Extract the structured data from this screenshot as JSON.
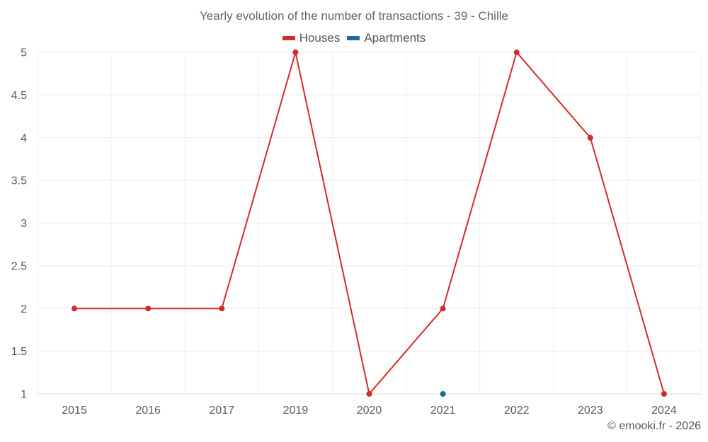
{
  "chart_data": {
    "type": "line",
    "title": "Yearly evolution of the number of transactions - 39 - Chille",
    "categories": [
      "2015",
      "2016",
      "2017",
      "2019",
      "2020",
      "2021",
      "2022",
      "2023",
      "2024"
    ],
    "series": [
      {
        "name": "Houses",
        "color": "#d32a2a",
        "values": [
          2,
          2,
          2,
          5,
          1,
          2,
          5,
          4,
          1
        ]
      },
      {
        "name": "Apartments",
        "color": "#1f6a9a",
        "values": [
          null,
          null,
          null,
          null,
          null,
          1,
          null,
          null,
          null
        ]
      }
    ],
    "y_ticks": [
      "1",
      "1.5",
      "2",
      "2.5",
      "3",
      "3.5",
      "4",
      "4.5",
      "5"
    ],
    "ylim": [
      1,
      5
    ],
    "xlabel": "",
    "ylabel": "",
    "grid": true,
    "legend_position": "top-center"
  },
  "credit": "© emooki.fr - 2026"
}
